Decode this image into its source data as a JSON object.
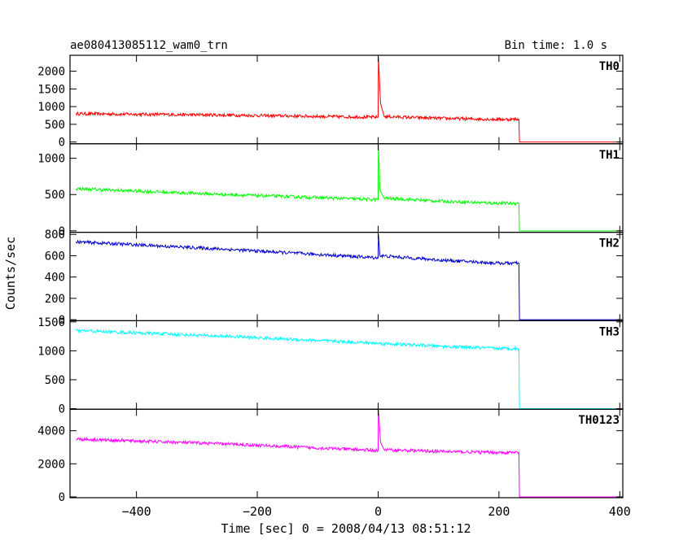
{
  "header": {
    "title": "ae080413085112_wam0_trn",
    "bin_time": "Bin time: 1.0 s"
  },
  "axes": {
    "xlabel": "Time [sec] 0 = 2008/04/13 08:51:12",
    "ylabel": "Counts/sec",
    "xlim": [
      -510,
      405
    ],
    "x_ticks": [
      -400,
      -200,
      0,
      200,
      400
    ]
  },
  "chart_data": {
    "type": "line",
    "x_range": [
      -500,
      400
    ],
    "grid": false,
    "series": [
      {
        "name": "TH0",
        "color": "#ff0000",
        "ylim": [
          -50,
          2450
        ],
        "y_ticks": [
          0,
          500,
          1000,
          1500,
          2000
        ],
        "points": [
          [
            -500,
            800
          ],
          [
            -250,
            760
          ],
          [
            0,
            700
          ],
          [
            0.5,
            2400
          ],
          [
            4,
            1100
          ],
          [
            10,
            720
          ],
          [
            100,
            670
          ],
          [
            200,
            640
          ],
          [
            233,
            640
          ],
          [
            234,
            0
          ],
          [
            400,
            0
          ]
        ]
      },
      {
        "name": "TH1",
        "color": "#00ff00",
        "ylim": [
          -20,
          1200
        ],
        "y_ticks": [
          0,
          500,
          1000
        ],
        "points": [
          [
            -500,
            580
          ],
          [
            -250,
            500
          ],
          [
            0,
            430
          ],
          [
            0.5,
            1200
          ],
          [
            3,
            560
          ],
          [
            10,
            450
          ],
          [
            100,
            410
          ],
          [
            200,
            380
          ],
          [
            233,
            380
          ],
          [
            234,
            0
          ],
          [
            400,
            0
          ]
        ]
      },
      {
        "name": "TH2",
        "color": "#0000cc",
        "ylim": [
          -10,
          820
        ],
        "y_ticks": [
          0,
          200,
          400,
          600,
          800
        ],
        "points": [
          [
            -500,
            730
          ],
          [
            -250,
            660
          ],
          [
            0,
            580
          ],
          [
            0.5,
            800
          ],
          [
            3,
            600
          ],
          [
            100,
            560
          ],
          [
            200,
            530
          ],
          [
            233,
            530
          ],
          [
            234,
            0
          ],
          [
            400,
            0
          ]
        ]
      },
      {
        "name": "TH3",
        "color": "#00ffff",
        "ylim": [
          -10,
          1520
        ],
        "y_ticks": [
          0,
          500,
          1000,
          1500
        ],
        "points": [
          [
            -500,
            1350
          ],
          [
            -250,
            1250
          ],
          [
            0,
            1130
          ],
          [
            100,
            1080
          ],
          [
            200,
            1040
          ],
          [
            233,
            1040
          ],
          [
            234,
            0
          ],
          [
            400,
            0
          ]
        ]
      },
      {
        "name": "TH0123",
        "color": "#ff00ff",
        "ylim": [
          -50,
          5300
        ],
        "y_ticks": [
          0,
          2000,
          4000
        ],
        "points": [
          [
            -500,
            3500
          ],
          [
            -250,
            3200
          ],
          [
            0,
            2800
          ],
          [
            0.5,
            5300
          ],
          [
            4,
            3300
          ],
          [
            10,
            2850
          ],
          [
            100,
            2750
          ],
          [
            200,
            2680
          ],
          [
            233,
            2680
          ],
          [
            234,
            0
          ],
          [
            400,
            0
          ]
        ]
      }
    ]
  }
}
